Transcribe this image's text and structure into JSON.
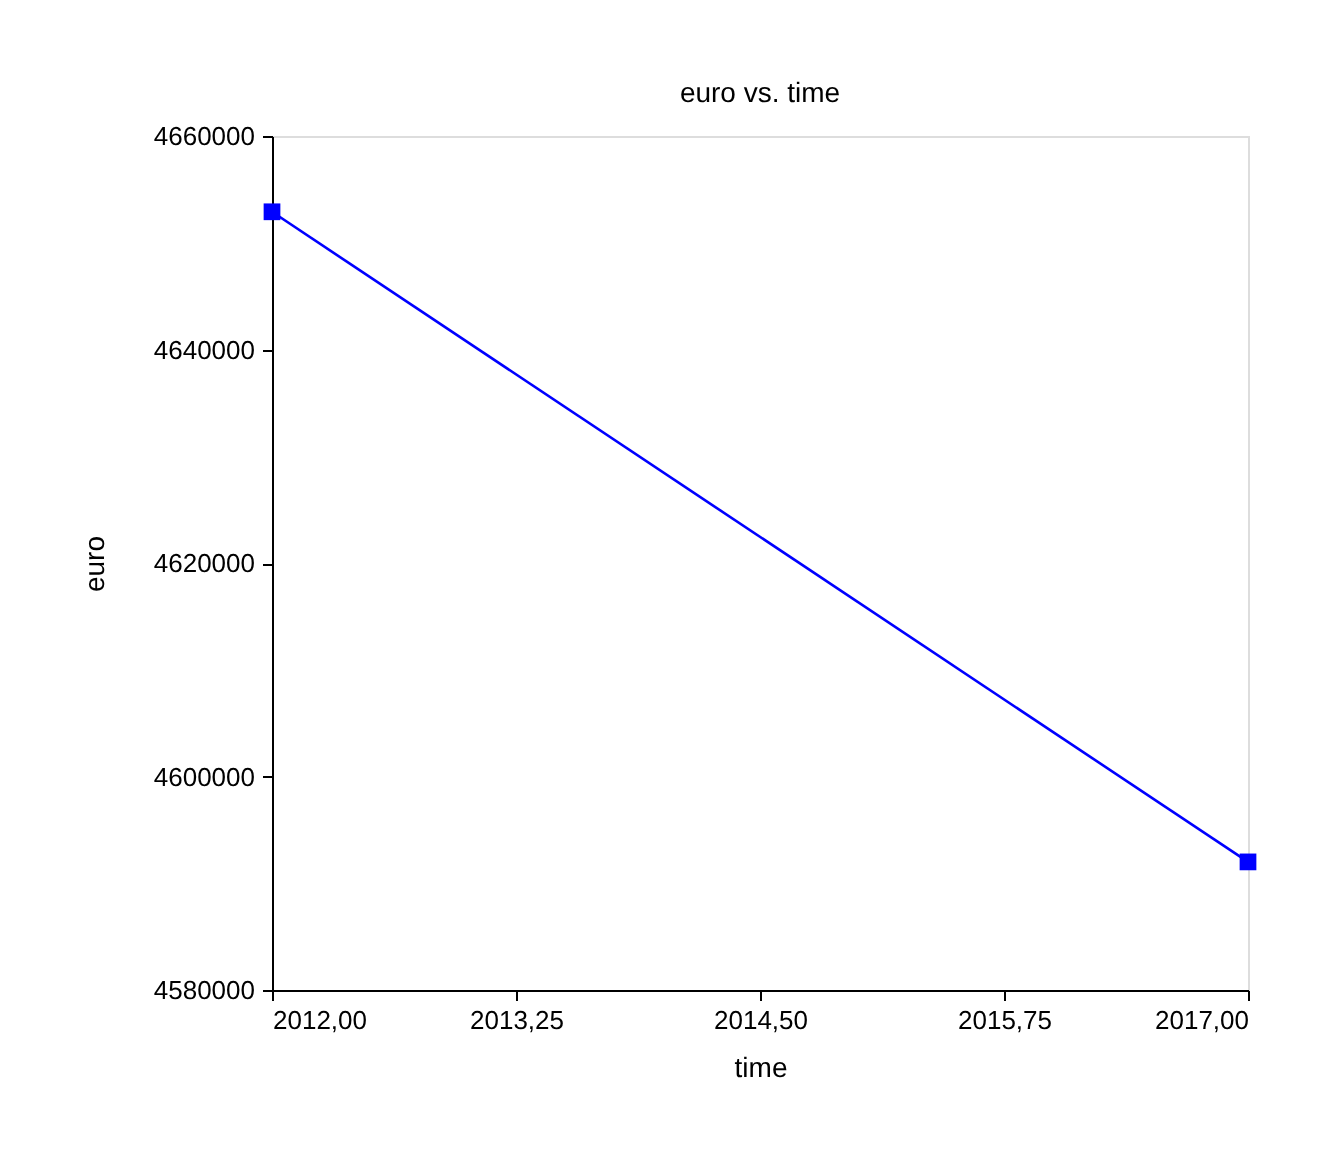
{
  "chart_data": {
    "type": "line",
    "title": "euro vs. time",
    "xlabel": "time",
    "ylabel": "euro",
    "x": [
      2012,
      2017
    ],
    "series": [
      {
        "color": "#0000ff",
        "values": [
          4652900,
          4592000
        ]
      }
    ],
    "xlim": [
      2012,
      2017
    ],
    "xticks": [
      {
        "value": 2012,
        "label": "2012,00"
      },
      {
        "value": 2013.25,
        "label": "2013,25"
      },
      {
        "value": 2014.5,
        "label": "2014,50"
      },
      {
        "value": 2015.75,
        "label": "2015,75"
      },
      {
        "value": 2017,
        "label": "2017,00"
      }
    ],
    "ylim": [
      4580000,
      4660000
    ],
    "yticks": [
      4580000,
      4600000,
      4620000,
      4640000,
      4660000
    ],
    "marker": "square",
    "line_style": "solid",
    "grid": false
  }
}
